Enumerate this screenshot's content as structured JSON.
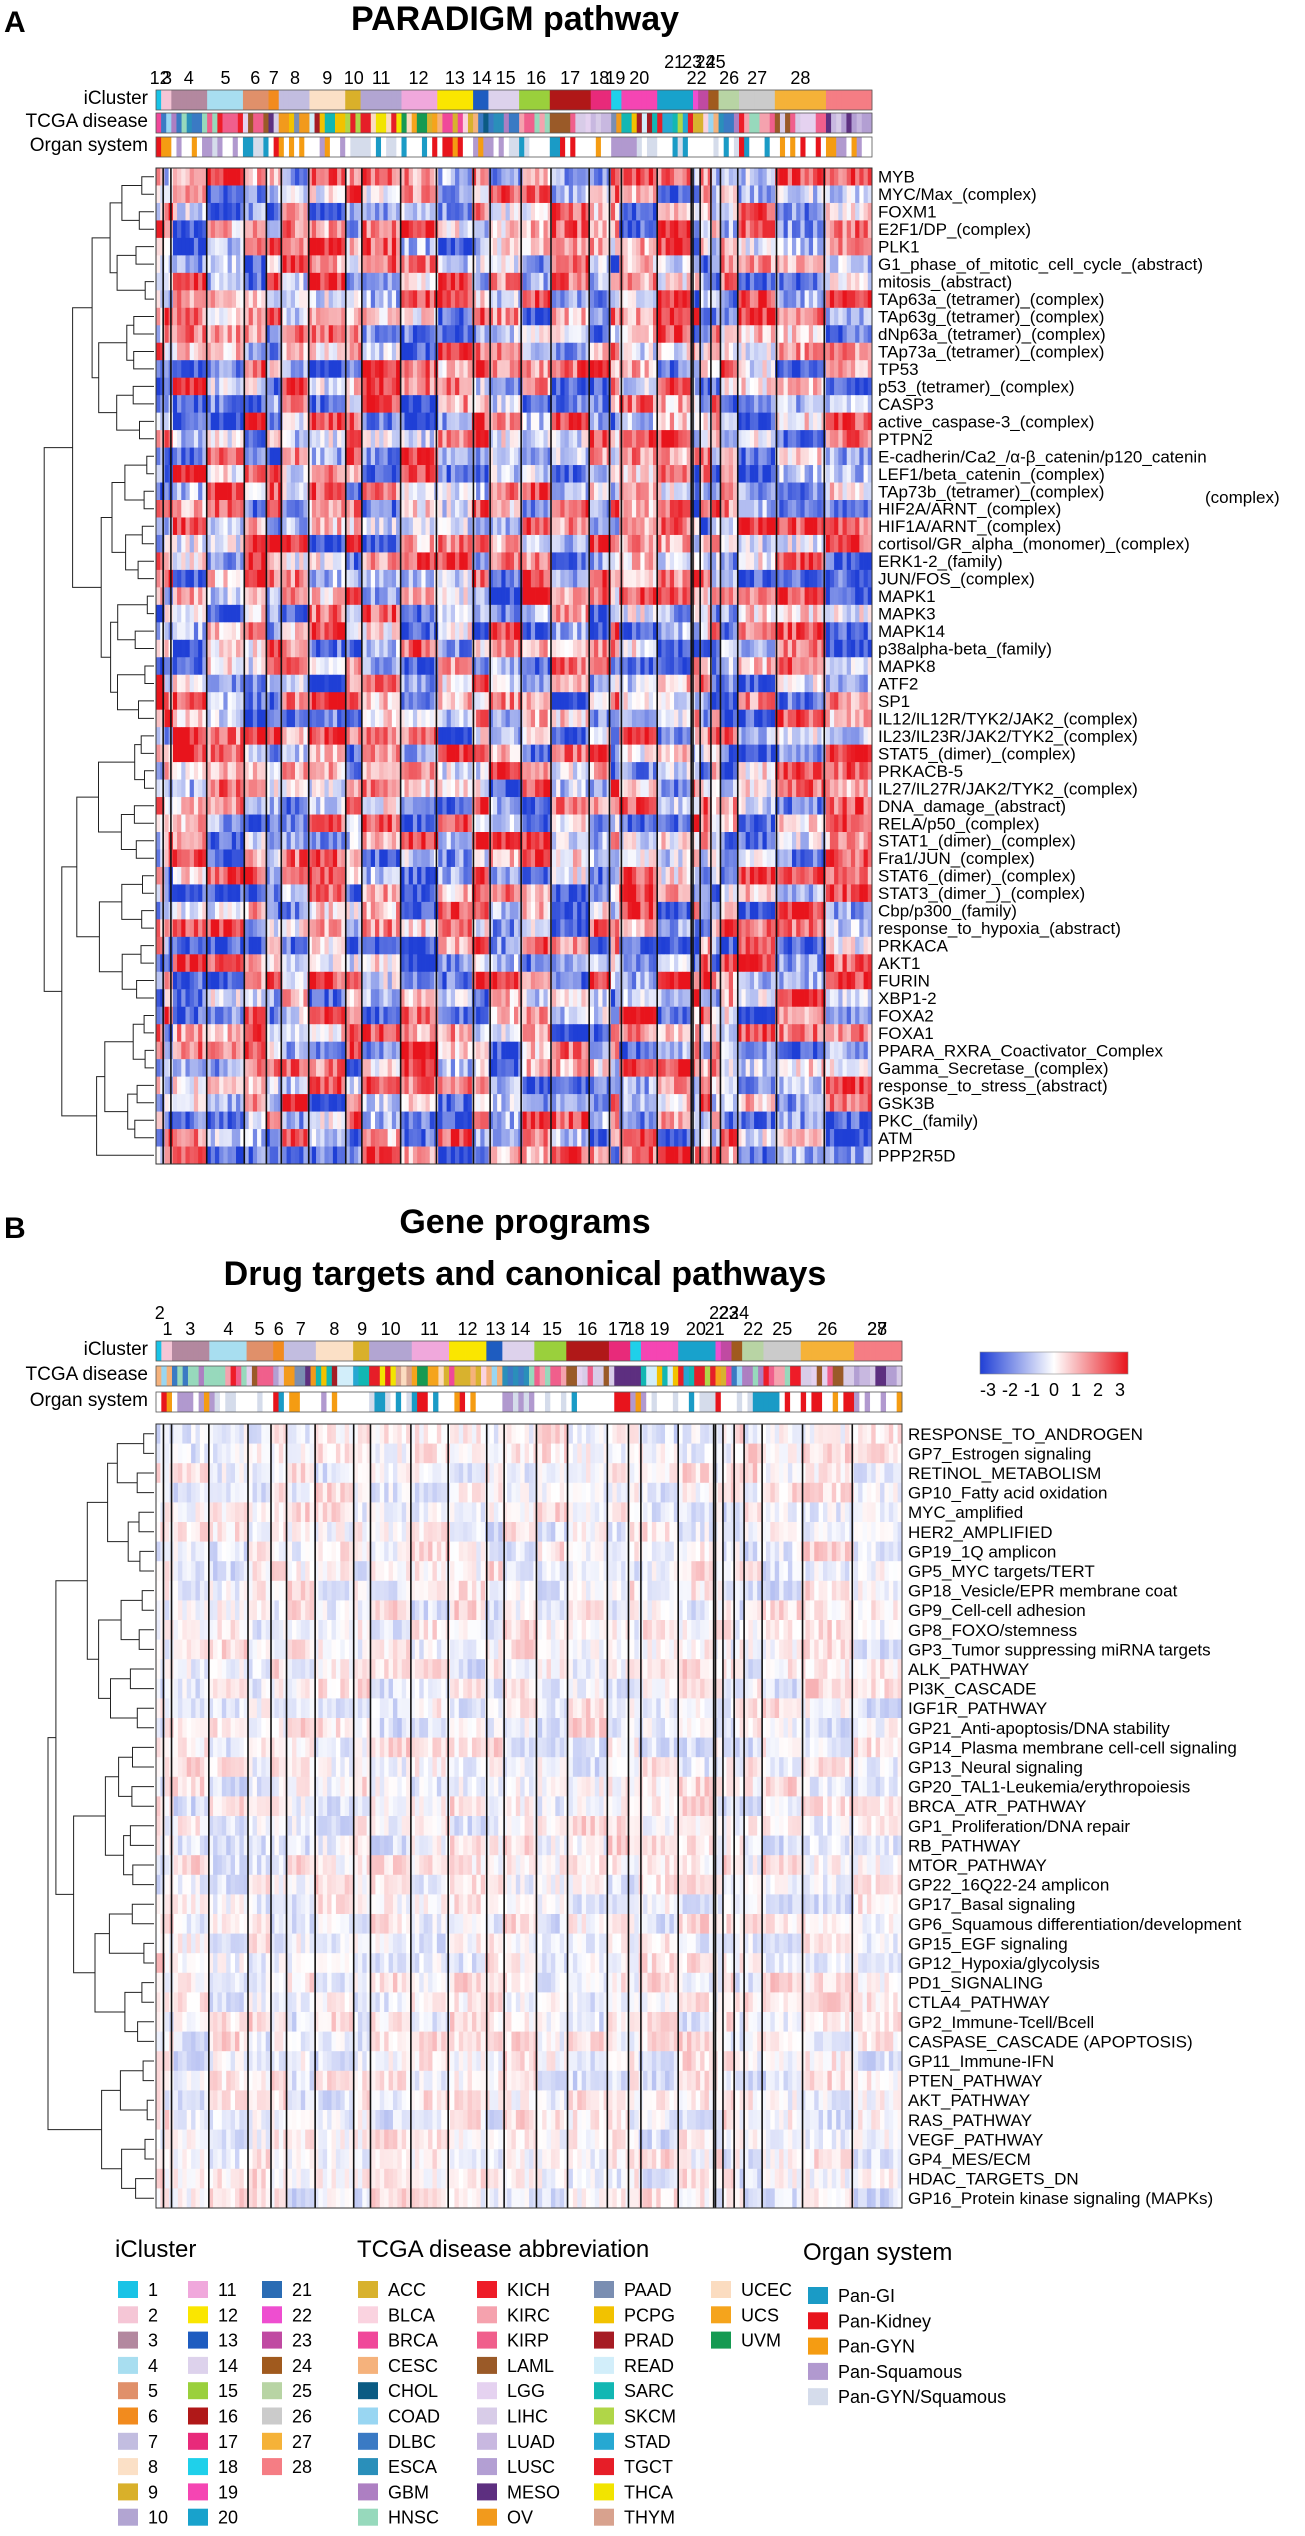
{
  "panels": [
    {
      "letter": "A",
      "title_lines": [
        "PARADIGM pathway"
      ],
      "track_labels": [
        "iCluster",
        "TCGA disease",
        "Organ system"
      ],
      "cluster_number_labels": [
        "12",
        "3",
        "4",
        "5",
        "6",
        "7",
        "8",
        "9",
        "10",
        "11",
        "12",
        "13",
        "14",
        "15",
        "16",
        "17",
        "18",
        "19",
        "20",
        "21",
        "23",
        "22",
        "24",
        "25",
        "26",
        "27",
        "28"
      ],
      "row_labels": [
        "MYB",
        "MYC/Max_(complex)",
        "FOXM1",
        "E2F1/DP_(complex)",
        "PLK1",
        "G1_phase_of_mitotic_cell_cycle_(abstract)",
        "mitosis_(abstract)",
        "TAp63a_(tetramer)_(complex)",
        "TAp63g_(tetramer)_(complex)",
        "dNp63a_(tetramer)_(complex)",
        "TAp73a_(tetramer)_(complex)",
        "TP53",
        "p53_(tetramer)_(complex)",
        "CASP3",
        "active_caspase-3_(complex)",
        "PTPN2",
        "E-cadherin/Ca2_/α-β_catenin/p120_catenin",
        "LEF1/beta_catenin_(complex)",
        "TAp73b_(tetramer)_(complex)",
        "HIF2A/ARNT_(complex)",
        "HIF1A/ARNT_(complex)",
        "cortisol/GR_alpha_(monomer)_(complex)",
        "ERK1-2_(family)",
        "JUN/FOS_(complex)",
        "MAPK1",
        "MAPK3",
        "MAPK14",
        "p38alpha-beta_(family)",
        "MAPK8",
        "ATF2",
        "SP1",
        "IL12/IL12R/TYK2/JAK2_(complex)",
        "IL23/IL23R/JAK2/TYK2_(complex)",
        "STAT5_(dimer)_(complex)",
        "PRKACB-5",
        "IL27/IL27R/JAK2/TYK2_(complex)",
        "DNA_damage_(abstract)",
        "RELA/p50_(complex)",
        "STAT1_(dimer)_(complex)",
        "Fra1/JUN_(complex)",
        "STAT6_(dimer)_(complex)",
        "STAT3_(dimer_)_(complex)",
        "Cbp/p300_(family)",
        "response_to_hypoxia_(abstract)",
        "PRKACA",
        "AKT1",
        "FURIN",
        "XBP1-2",
        "FOXA2",
        "FOXA1",
        "PPARA_RXRA_Coactivator_Complex",
        "Gamma_Secretase_(complex)",
        "response_to_stress_(abstract)",
        "GSK3B",
        "PKC_(family)",
        "ATM",
        "PPP2R5D"
      ],
      "extra_label": "(complex)"
    },
    {
      "letter": "B",
      "title_lines": [
        "Gene programs",
        "Drug targets and canonical pathways"
      ],
      "track_labels": [
        "iCluster",
        "TCGA disease",
        "Organ system"
      ],
      "cluster_number_labels": [
        "2",
        "1",
        "3",
        "4",
        "5",
        "6",
        "7",
        "8",
        "9",
        "10",
        "11",
        "12",
        "13",
        "14",
        "15",
        "16",
        "17",
        "18",
        "19",
        "20",
        "21",
        "22",
        "23",
        "24",
        "22",
        "25",
        "26",
        "27",
        "28"
      ],
      "row_labels": [
        "RESPONSE_TO_ANDROGEN",
        "GP7_Estrogen signaling",
        "RETINOL_METABOLISM",
        "GP10_Fatty acid oxidation",
        "MYC_amplified",
        "HER2_AMPLIFIED",
        "GP19_1Q amplicon",
        "GP5_MYC targets/TERT",
        "GP18_Vesicle/EPR membrane coat",
        "GP9_Cell-cell adhesion",
        "GP8_FOXO/stemness",
        "GP3_Tumor suppressing miRNA targets",
        "ALK_PATHWAY",
        "PI3K_CASCADE",
        "IGF1R_PATHWAY",
        "GP21_Anti-apoptosis/DNA stability",
        "GP14_Plasma membrane cell-cell signaling",
        "GP13_Neural signaling",
        "GP20_TAL1-Leukemia/erythropoiesis",
        "BRCA_ATR_PATHWAY",
        "GP1_Proliferation/DNA repair",
        "RB_PATHWAY",
        "MTOR_PATHWAY",
        "GP22_16Q22-24 amplicon",
        "GP17_Basal signaling",
        "GP6_Squamous differentiation/development",
        "GP15_EGF signaling",
        "GP12_Hypoxia/glycolysis",
        "PD1_SIGNALING",
        "CTLA4_PATHWAY",
        "GP2_Immune-Tcell/Bcell",
        "CASPASE_CASCADE (APOPTOSIS)",
        "GP11_Immune-IFN",
        "PTEN_PATHWAY",
        "AKT_PATHWAY",
        "RAS_PATHWAY",
        "VEGF_PATHWAY",
        "GP4_MES/ECM",
        "HDAC_TARGETS_DN",
        "GP16_Protein kinase signaling (MAPKs)"
      ],
      "colorbar": {
        "tick_labels": [
          "-3",
          "-2",
          "-1",
          "0",
          "1",
          "2",
          "3"
        ],
        "range": [
          -3,
          3
        ]
      }
    }
  ],
  "chart_data": {
    "type": "heatmap",
    "color_scale": {
      "min": -3,
      "max": 3,
      "low_color": "#1f3fd6",
      "mid_color": "#ffffff",
      "high_color": "#e8141c"
    },
    "icluster_count": 28
  },
  "legend": {
    "icluster": {
      "title": "iCluster",
      "items": [
        {
          "label": "1",
          "color": "#19c3e6"
        },
        {
          "label": "2",
          "color": "#f5c6d6"
        },
        {
          "label": "3",
          "color": "#b3889f"
        },
        {
          "label": "4",
          "color": "#a8def0"
        },
        {
          "label": "5",
          "color": "#e0906a"
        },
        {
          "label": "6",
          "color": "#f28b1e"
        },
        {
          "label": "7",
          "color": "#c2bde0"
        },
        {
          "label": "8",
          "color": "#fbe0c6"
        },
        {
          "label": "9",
          "color": "#d9b02a"
        },
        {
          "label": "10",
          "color": "#b2a5d2"
        },
        {
          "label": "11",
          "color": "#f0a8dc"
        },
        {
          "label": "12",
          "color": "#fae600"
        },
        {
          "label": "13",
          "color": "#1e5cc0"
        },
        {
          "label": "14",
          "color": "#ddd2ec"
        },
        {
          "label": "15",
          "color": "#9ad03c"
        },
        {
          "label": "16",
          "color": "#b01818"
        },
        {
          "label": "17",
          "color": "#e82a7a"
        },
        {
          "label": "18",
          "color": "#1fd0ea"
        },
        {
          "label": "19",
          "color": "#f545b3"
        },
        {
          "label": "20",
          "color": "#18a2cc"
        },
        {
          "label": "21",
          "color": "#2a6cb4"
        },
        {
          "label": "22",
          "color": "#ee4ed0"
        },
        {
          "label": "23",
          "color": "#c04aa2"
        },
        {
          "label": "24",
          "color": "#a05a1e"
        },
        {
          "label": "25",
          "color": "#b8d4a4"
        },
        {
          "label": "26",
          "color": "#cbcbcb"
        },
        {
          "label": "27",
          "color": "#f5b238"
        },
        {
          "label": "28",
          "color": "#f57d84"
        }
      ]
    },
    "disease": {
      "title": "TCGA disease abbreviation",
      "items": [
        {
          "label": "ACC",
          "color": "#d8b22e"
        },
        {
          "label": "BLCA",
          "color": "#fad3e0"
        },
        {
          "label": "BRCA",
          "color": "#f0489a"
        },
        {
          "label": "CESC",
          "color": "#f5b27c"
        },
        {
          "label": "CHOL",
          "color": "#0b5b83"
        },
        {
          "label": "COAD",
          "color": "#99d6f2"
        },
        {
          "label": "DLBC",
          "color": "#3a7ac4"
        },
        {
          "label": "ESCA",
          "color": "#2a8fba"
        },
        {
          "label": "GBM",
          "color": "#ad7fc2"
        },
        {
          "label": "HNSC",
          "color": "#97d9bc"
        },
        {
          "label": "KICH",
          "color": "#ee1c28"
        },
        {
          "label": "KIRC",
          "color": "#f5a2ae"
        },
        {
          "label": "KIRP",
          "color": "#f05f8c"
        },
        {
          "label": "LAML",
          "color": "#9a5a28"
        },
        {
          "label": "LGG",
          "color": "#e5d2f0"
        },
        {
          "label": "LIHC",
          "color": "#d8cce8"
        },
        {
          "label": "LUAD",
          "color": "#c8b8e0"
        },
        {
          "label": "LUSC",
          "color": "#b39fd3"
        },
        {
          "label": "MESO",
          "color": "#5d2f80"
        },
        {
          "label": "OV",
          "color": "#f29a1c"
        },
        {
          "label": "PAAD",
          "color": "#7a8eb2"
        },
        {
          "label": "PCPG",
          "color": "#f2c200"
        },
        {
          "label": "PRAD",
          "color": "#a61c24"
        },
        {
          "label": "READ",
          "color": "#d2eefa"
        },
        {
          "label": "SARC",
          "color": "#12b7b3"
        },
        {
          "label": "SKCM",
          "color": "#b0d648"
        },
        {
          "label": "STAD",
          "color": "#26a8d2"
        },
        {
          "label": "TGCT",
          "color": "#e61e28"
        },
        {
          "label": "THCA",
          "color": "#f2e400"
        },
        {
          "label": "THYM",
          "color": "#d8a28e"
        },
        {
          "label": "UCEC",
          "color": "#fbdcc0"
        },
        {
          "label": "UCS",
          "color": "#f5a41c"
        },
        {
          "label": "UVM",
          "color": "#159a52"
        }
      ]
    },
    "organ": {
      "title": "Organ system",
      "items": [
        {
          "label": "Pan-GI",
          "color": "#1a9bc6"
        },
        {
          "label": "Pan-Kidney",
          "color": "#e8141c"
        },
        {
          "label": "Pan-GYN",
          "color": "#f59c12"
        },
        {
          "label": "Pan-Squamous",
          "color": "#b199cf"
        },
        {
          "label": "Pan-GYN/Squamous",
          "color": "#d5dceb"
        }
      ]
    }
  }
}
